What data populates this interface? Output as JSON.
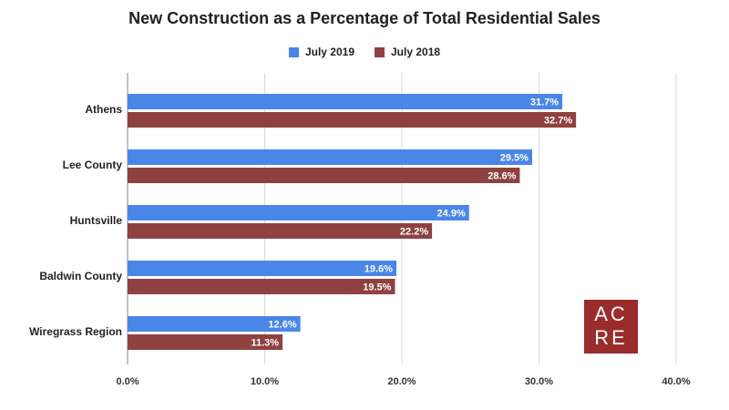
{
  "chart_data": {
    "type": "bar",
    "orientation": "horizontal",
    "title": "New Construction as a Percentage of Total Residential Sales",
    "categories": [
      "Athens",
      "Lee County",
      "Huntsville",
      "Baldwin County",
      "Wiregrass Region"
    ],
    "series": [
      {
        "name": "July 2019",
        "color": "#4a86e8",
        "values": [
          31.7,
          29.5,
          24.9,
          19.6,
          12.6
        ],
        "labels": [
          "31.7%",
          "29.5%",
          "24.9%",
          "19.6%",
          "12.6%"
        ]
      },
      {
        "name": "July 2018",
        "color": "#8f4141",
        "values": [
          32.7,
          28.6,
          22.2,
          19.5,
          11.3
        ],
        "labels": [
          "32.7%",
          "28.6%",
          "22.2%",
          "19.5%",
          "11.3%"
        ]
      }
    ],
    "xlim": [
      0,
      40
    ],
    "xticks": [
      0,
      10,
      20,
      30,
      40
    ],
    "xtick_labels": [
      "0.0%",
      "10.0%",
      "20.0%",
      "30.0%",
      "40.0%"
    ],
    "grid": true,
    "legend_position": "top"
  },
  "logo": {
    "line1": "AC",
    "line2": "RE",
    "color": "#9b2c2c"
  }
}
